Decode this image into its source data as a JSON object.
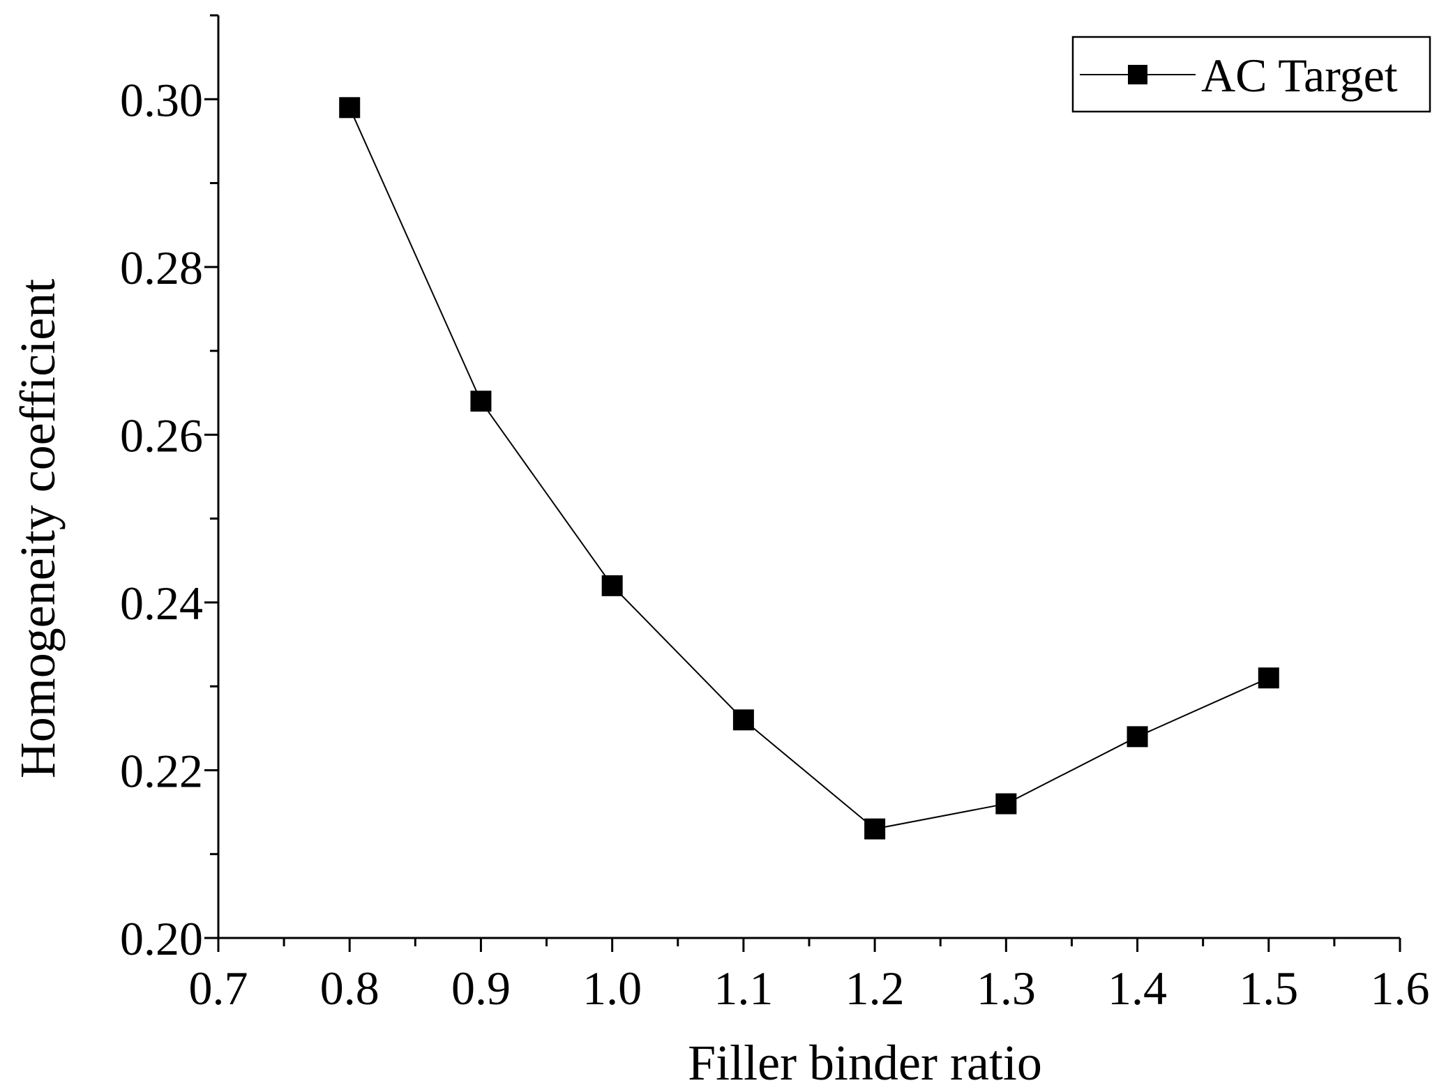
{
  "chart_data": {
    "type": "line",
    "xlabel": "Filler binder ratio",
    "ylabel": "Homogeneity coefficient",
    "xlim": [
      0.7,
      1.6
    ],
    "ylim": [
      0.2,
      0.31
    ],
    "xticks": [
      "0.7",
      "0.8",
      "0.9",
      "1.0",
      "1.1",
      "1.2",
      "1.3",
      "1.4",
      "1.5",
      "1.6"
    ],
    "yticks": [
      "0.20",
      "0.22",
      "0.24",
      "0.26",
      "0.28",
      "0.30"
    ],
    "xtick_values": [
      0.7,
      0.8,
      0.9,
      1.0,
      1.1,
      1.2,
      1.3,
      1.4,
      1.5,
      1.6
    ],
    "ytick_values": [
      0.2,
      0.22,
      0.24,
      0.26,
      0.28,
      0.3
    ],
    "minor_x_step": 0.05,
    "minor_y_step": 0.01,
    "grid": false,
    "legend_position": "top-right",
    "marker": "square",
    "series": [
      {
        "name": "AC Target",
        "color": "#000000",
        "x": [
          0.8,
          0.9,
          1.0,
          1.1,
          1.2,
          1.3,
          1.4,
          1.5
        ],
        "y": [
          0.299,
          0.264,
          0.242,
          0.226,
          0.213,
          0.216,
          0.224,
          0.231
        ]
      }
    ]
  }
}
